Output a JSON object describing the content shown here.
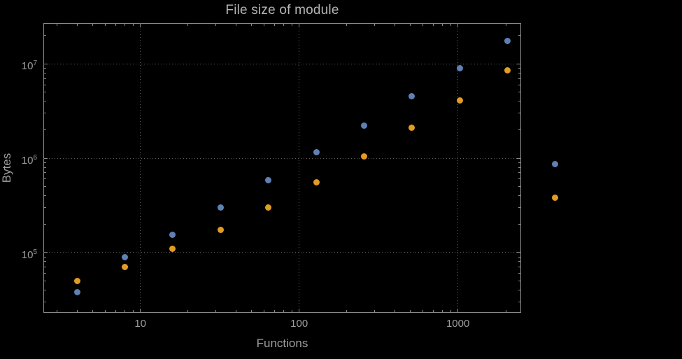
{
  "page": {
    "background": "#000000"
  },
  "chart_data": {
    "type": "scatter",
    "title": "File size of module",
    "xlabel": "Functions",
    "ylabel": "Bytes",
    "x_scale": "log",
    "y_scale": "log",
    "xlim": [
      2.45,
      2500
    ],
    "ylim": [
      23000,
      27000000
    ],
    "grid": true,
    "x_ticks": [
      {
        "value": 10,
        "label": "10"
      },
      {
        "value": 100,
        "label": "100"
      },
      {
        "value": 1000,
        "label": "1000"
      }
    ],
    "y_ticks": [
      {
        "value": 100000,
        "base": "10",
        "exp": "5"
      },
      {
        "value": 1000000,
        "base": "10",
        "exp": "6"
      },
      {
        "value": 10000000,
        "base": "10",
        "exp": "7"
      }
    ],
    "colors": {
      "frame": "#8a8a8a",
      "grid": "#606060",
      "text": "#9e9e9e",
      "title": "#b6b6b6",
      "series1": "#5e81b5",
      "series2": "#e19c24"
    },
    "series": [
      {
        "name": "series-1-blue",
        "color": "#5e81b5",
        "points": [
          [
            4,
            38000
          ],
          [
            8,
            90000
          ],
          [
            16,
            155000
          ],
          [
            32,
            300000
          ],
          [
            64,
            580000
          ],
          [
            128,
            1150000
          ],
          [
            256,
            2200000
          ],
          [
            512,
            4500000
          ],
          [
            1024,
            9000000
          ],
          [
            2048,
            17500000
          ]
        ]
      },
      {
        "name": "series-2-orange",
        "color": "#e19c24",
        "points": [
          [
            4,
            50000
          ],
          [
            8,
            70000
          ],
          [
            16,
            110000
          ],
          [
            32,
            175000
          ],
          [
            64,
            300000
          ],
          [
            128,
            560000
          ],
          [
            256,
            1050000
          ],
          [
            512,
            2100000
          ],
          [
            1024,
            4100000
          ],
          [
            2048,
            8500000
          ]
        ]
      }
    ],
    "outside_frame_points": [
      {
        "series": "series-1-blue",
        "color": "#5e81b5",
        "x": 4096,
        "y": 870000
      },
      {
        "series": "series-2-orange",
        "color": "#e19c24",
        "x": 4096,
        "y": 380000
      }
    ]
  }
}
